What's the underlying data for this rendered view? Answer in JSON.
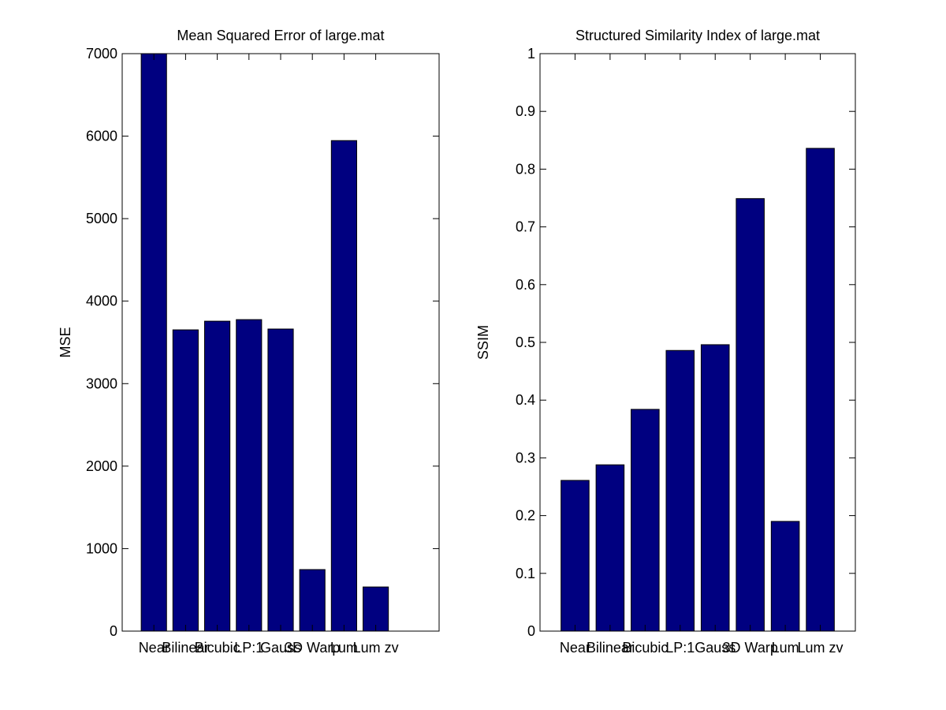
{
  "chart_data": [
    {
      "type": "bar",
      "title": "Mean Squared Error of large.mat",
      "y_label": "MSE",
      "categories": [
        "Near",
        "Bilinear",
        "Bicubic",
        "LP:1",
        "Gauss",
        "3D Warp",
        "Lum",
        "Lum zv"
      ],
      "x": [
        1,
        2,
        3,
        4,
        5,
        6,
        7,
        8
      ],
      "xlim": [
        0,
        10
      ],
      "values": [
        7000,
        3652,
        3757,
        3776,
        3662,
        746,
        5946,
        535
      ],
      "color": "#000080",
      "ylim": [
        0,
        7000
      ],
      "yticks": [
        0,
        1000,
        2000,
        3000,
        4000,
        5000,
        6000,
        7000
      ],
      "grid": false
    },
    {
      "type": "bar",
      "title": "Structured Similarity Index of large.mat",
      "y_label": "SSIM",
      "categories": [
        "Near",
        "Bilinear",
        "Bicubic",
        "LP:1",
        "Gauss",
        "3D Warp",
        "Lum",
        "Lum zv"
      ],
      "x": [
        1,
        2,
        3,
        4,
        5,
        6,
        7,
        8
      ],
      "xlim": [
        0,
        9
      ],
      "values": [
        0.261,
        0.288,
        0.384,
        0.486,
        0.496,
        0.749,
        0.19,
        0.836
      ],
      "color": "#000080",
      "ylim": [
        0,
        1
      ],
      "yticks": [
        0,
        0.1,
        0.2,
        0.3,
        0.4,
        0.5,
        0.6,
        0.7,
        0.8,
        0.9,
        1
      ],
      "grid": false
    }
  ]
}
